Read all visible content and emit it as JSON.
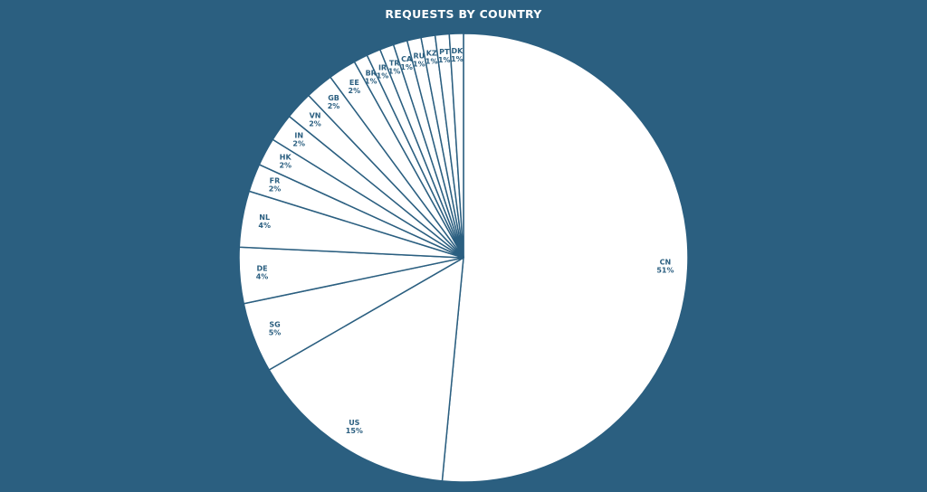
{
  "chart_data": {
    "type": "pie",
    "title": "REQUESTS BY COUNTRY",
    "start": "top",
    "direction": "clockwise",
    "slice_color": "#ffffff",
    "background_color": "#2b5f80",
    "label_color": "#2b5f80",
    "slices": [
      {
        "label": "CN",
        "value": 51,
        "text": "51%"
      },
      {
        "label": "US",
        "value": 15,
        "text": "15%"
      },
      {
        "label": "SG",
        "value": 5,
        "text": "5%"
      },
      {
        "label": "DE",
        "value": 4,
        "text": "4%"
      },
      {
        "label": "NL",
        "value": 4,
        "text": "4%"
      },
      {
        "label": "FR",
        "value": 2,
        "text": "2%"
      },
      {
        "label": "HK",
        "value": 2,
        "text": "2%"
      },
      {
        "label": "IN",
        "value": 2,
        "text": "2%"
      },
      {
        "label": "VN",
        "value": 2,
        "text": "2%"
      },
      {
        "label": "GB",
        "value": 2,
        "text": "2%"
      },
      {
        "label": "EE",
        "value": 2,
        "text": "2%"
      },
      {
        "label": "BR",
        "value": 1,
        "text": "1%"
      },
      {
        "label": "IR",
        "value": 1,
        "text": "1%"
      },
      {
        "label": "TR",
        "value": 1,
        "text": "1%"
      },
      {
        "label": "CA",
        "value": 1,
        "text": "1%"
      },
      {
        "label": "RU",
        "value": 1,
        "text": "1%"
      },
      {
        "label": "KZ",
        "value": 1,
        "text": "1%"
      },
      {
        "label": "PT",
        "value": 1,
        "text": "1%"
      },
      {
        "label": "DK",
        "value": 1,
        "text": "1%"
      }
    ]
  }
}
